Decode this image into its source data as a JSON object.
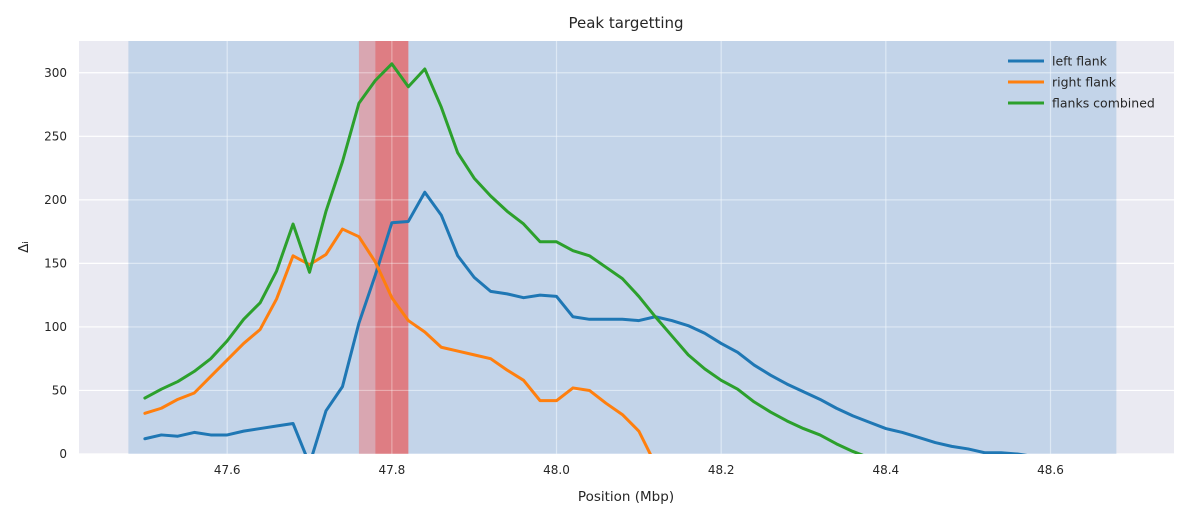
{
  "chart_data": {
    "type": "line",
    "title": "Peak targetting",
    "xlabel": "Position (Mbp)",
    "ylabel": "Δᵢ",
    "xlim": [
      47.42,
      48.75
    ],
    "ylim": [
      0,
      325
    ],
    "xticks": [
      47.6,
      47.8,
      48.0,
      48.2,
      48.4,
      48.6
    ],
    "xtick_labels": [
      "47.6",
      "47.8",
      "48.0",
      "48.2",
      "48.4",
      "48.6"
    ],
    "yticks": [
      0,
      50,
      100,
      150,
      200,
      250,
      300
    ],
    "ytick_labels": [
      "0",
      "50",
      "100",
      "150",
      "200",
      "250",
      "300"
    ],
    "grid": true,
    "legend_position": "upper-right",
    "regions": [
      {
        "x0": 47.48,
        "x1": 48.68,
        "color": "#a9c5e3",
        "opacity": 0.6
      },
      {
        "x0": 47.76,
        "x1": 47.82,
        "color": "#e8878c",
        "opacity": 0.6
      },
      {
        "x0": 47.78,
        "x1": 47.82,
        "color": "#e06c6f",
        "opacity": 0.7
      }
    ],
    "series": [
      {
        "name": "left flank",
        "color": "#1f77b4",
        "x": [
          47.5,
          47.52,
          47.54,
          47.56,
          47.58,
          47.6,
          47.62,
          47.64,
          47.66,
          47.68,
          47.7,
          47.72,
          47.74,
          47.76,
          47.78,
          47.8,
          47.82,
          47.84,
          47.86,
          47.88,
          47.9,
          47.92,
          47.94,
          47.96,
          47.98,
          48.0,
          48.02,
          48.04,
          48.06,
          48.08,
          48.1,
          48.12,
          48.14,
          48.16,
          48.18,
          48.2,
          48.22,
          48.24,
          48.26,
          48.28,
          48.3,
          48.32,
          48.34,
          48.36,
          48.38,
          48.4,
          48.42,
          48.44,
          48.46,
          48.48,
          48.5,
          48.52,
          48.54,
          48.56,
          48.58,
          48.6
        ],
        "y": [
          12,
          15,
          14,
          17,
          15,
          15,
          18,
          20,
          22,
          24,
          -8,
          34,
          53,
          103,
          141,
          182,
          183,
          206,
          188,
          156,
          139,
          128,
          126,
          123,
          125,
          124,
          108,
          106,
          106,
          106,
          105,
          108,
          105,
          101,
          95,
          87,
          80,
          70,
          62,
          55,
          49,
          43,
          36,
          30,
          25,
          20,
          17,
          13,
          9,
          6,
          4,
          1,
          1,
          0,
          -2,
          -4
        ]
      },
      {
        "name": "right flank",
        "color": "#ff7f0e",
        "x": [
          47.5,
          47.52,
          47.54,
          47.56,
          47.58,
          47.6,
          47.62,
          47.64,
          47.66,
          47.68,
          47.7,
          47.72,
          47.74,
          47.76,
          47.78,
          47.8,
          47.82,
          47.84,
          47.86,
          47.88,
          47.9,
          47.92,
          47.94,
          47.96,
          47.98,
          48.0,
          48.02,
          48.04,
          48.06,
          48.08,
          48.1,
          48.12
        ],
        "y": [
          32,
          36,
          43,
          48,
          61,
          74,
          87,
          98,
          122,
          156,
          149,
          157,
          177,
          171,
          151,
          123,
          105,
          96,
          84,
          81,
          78,
          75,
          66,
          58,
          42,
          42,
          52,
          50,
          40,
          31,
          18,
          -8
        ]
      },
      {
        "name": "flanks combined",
        "color": "#2ca02c",
        "x": [
          47.5,
          47.52,
          47.54,
          47.56,
          47.58,
          47.6,
          47.62,
          47.64,
          47.66,
          47.68,
          47.7,
          47.72,
          47.74,
          47.76,
          47.78,
          47.8,
          47.82,
          47.84,
          47.86,
          47.88,
          47.9,
          47.92,
          47.94,
          47.96,
          47.98,
          48.0,
          48.02,
          48.04,
          48.06,
          48.08,
          48.1,
          48.12,
          48.14,
          48.16,
          48.18,
          48.2,
          48.22,
          48.24,
          48.26,
          48.28,
          48.3,
          48.32,
          48.34,
          48.36,
          48.38
        ],
        "y": [
          44,
          51,
          57,
          65,
          75,
          89,
          106,
          119,
          144,
          181,
          143,
          191,
          230,
          276,
          294,
          307,
          289,
          303,
          273,
          237,
          217,
          203,
          191,
          181,
          167,
          167,
          160,
          156,
          147,
          138,
          124,
          108,
          93,
          78,
          67,
          58,
          51,
          41,
          33,
          26,
          20,
          15,
          8,
          2,
          -3
        ]
      }
    ]
  }
}
